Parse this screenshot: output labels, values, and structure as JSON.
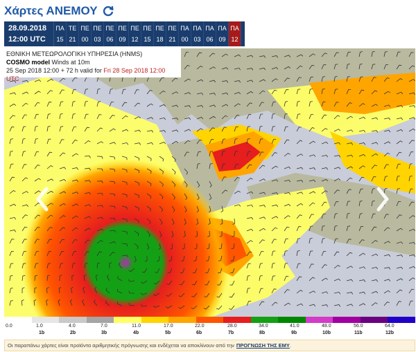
{
  "header": {
    "title": "Χάρτες ΑΝΕΜΟΥ",
    "refresh_icon": "refresh-icon"
  },
  "timeline": {
    "date": "28.09.2018",
    "time": "12:00 UTC",
    "slots": [
      {
        "day": "ΠΑ",
        "hour": "15"
      },
      {
        "day": "ΤΕ",
        "hour": "21"
      },
      {
        "day": "ΠΕ",
        "hour": "00"
      },
      {
        "day": "ΠΕ",
        "hour": "03"
      },
      {
        "day": "ΠΕ",
        "hour": "06"
      },
      {
        "day": "ΠΕ",
        "hour": "09"
      },
      {
        "day": "ΠΕ",
        "hour": "12"
      },
      {
        "day": "ΠΕ",
        "hour": "15"
      },
      {
        "day": "ΠΕ",
        "hour": "18"
      },
      {
        "day": "ΠΕ",
        "hour": "21"
      },
      {
        "day": "ΠΑ",
        "hour": "00"
      },
      {
        "day": "ΠΑ",
        "hour": "03"
      },
      {
        "day": "ΠΑ",
        "hour": "06"
      },
      {
        "day": "ΠΑ",
        "hour": "09"
      },
      {
        "day": "ΠΑ",
        "hour": "12"
      }
    ],
    "active_index": 14,
    "active_color": "#a51b1b"
  },
  "map": {
    "agency": "ΕΘΝΙΚΗ ΜΕΤΕΩΡΟΛΟΓΙΚΗ ΥΠΗΡΕΣΙΑ (ΗΝΜS)",
    "model": "COSMO model",
    "variable": "Winds at 10m",
    "run": "25 Sep 2018 12:00 + 72 h valid for",
    "valid": "Fri 28 Sep 2018 12:00 UTC",
    "prev_icon": "chevron-left-icon",
    "next_icon": "chevron-right-icon"
  },
  "legend": {
    "ms_labels": [
      "0.0",
      "1.0",
      "4.0",
      "7.0",
      "11.0",
      "17.0",
      "22.0",
      "28.0",
      "34.0",
      "41.0",
      "48.0",
      "56.0",
      "64.0"
    ],
    "beaufort_labels": [
      "1b",
      "2b",
      "3b",
      "4b",
      "5b",
      "6b",
      "7b",
      "8b",
      "9b",
      "10b",
      "11b",
      "12b"
    ],
    "colors": [
      "#ffffff",
      "#e6e6e6",
      "#c9c9c9",
      "#a5a5a5",
      "#ffff66",
      "#ffd400",
      "#ffa500",
      "#ff5500",
      "#e61e1e",
      "#14a014",
      "#008700",
      "#d23cc8",
      "#a000a0",
      "#6a0080",
      "#2000c8"
    ]
  },
  "footer": {
    "text": "Οι παραπάνω χάρτες είναι προϊόντα αριθμητικής πρόγνωσης και ενδέχεται να αποκλίνουν από την",
    "link": "ΠΡΟΓΝΩΣΗ ΤΗΣ ΕΜΥ",
    "suffix": "."
  }
}
